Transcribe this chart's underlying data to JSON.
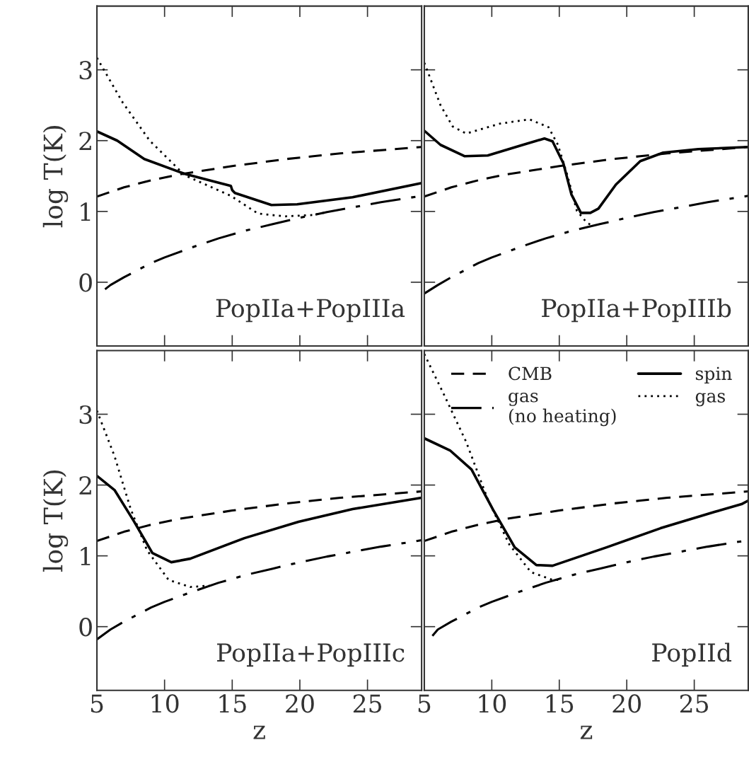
{
  "chart_data": [
    {
      "type": "line",
      "ylabel": "log T(K)",
      "xlim": [
        5,
        29
      ],
      "ylim": [
        -0.9,
        3.9
      ],
      "xticks": [
        5,
        10,
        15,
        20,
        25
      ],
      "yticks": [
        0,
        1,
        2,
        3
      ],
      "tick_labels": "y",
      "grid": false,
      "legend": false,
      "annotations": [
        "PopIIa+PopIIIa"
      ],
      "series": [
        {
          "color": "#000000",
          "line_style": "dashed",
          "x": [
            5,
            7,
            9,
            11,
            13,
            15,
            17,
            19,
            21,
            23,
            25,
            27,
            29
          ],
          "values": [
            1.21,
            1.34,
            1.44,
            1.52,
            1.58,
            1.64,
            1.69,
            1.74,
            1.78,
            1.82,
            1.85,
            1.88,
            1.91
          ]
        },
        {
          "color": "#000000",
          "line_style": "dashdot",
          "x": [
            5.6,
            6,
            7,
            8,
            9,
            10,
            12,
            14,
            16,
            18,
            20,
            22,
            24,
            26,
            28,
            29
          ],
          "values": [
            -0.1,
            -0.04,
            0.07,
            0.17,
            0.27,
            0.35,
            0.49,
            0.62,
            0.73,
            0.82,
            0.91,
            0.99,
            1.06,
            1.13,
            1.19,
            1.22
          ]
        },
        {
          "color": "#000000",
          "line_style": "solid",
          "x": [
            5,
            6.5,
            8.5,
            11.5,
            14.9,
            15,
            15.2,
            17.9,
            19.8,
            23.9,
            29
          ],
          "values": [
            2.13,
            2.0,
            1.74,
            1.53,
            1.36,
            1.3,
            1.26,
            1.09,
            1.1,
            1.2,
            1.4
          ]
        },
        {
          "color": "#000000",
          "line_style": "dotted",
          "x": [
            5,
            6.9,
            8.9,
            11.5,
            14.9,
            16.9,
            18.9,
            21,
            22
          ],
          "values": [
            3.17,
            2.54,
            2.0,
            1.51,
            1.22,
            0.97,
            0.93,
            0.95,
            0.99
          ]
        }
      ]
    },
    {
      "type": "line",
      "xlim": [
        5,
        29
      ],
      "ylim": [
        -0.9,
        3.9
      ],
      "xticks": [
        5,
        10,
        15,
        20,
        25
      ],
      "yticks": [
        0,
        1,
        2,
        3
      ],
      "tick_labels": false,
      "grid": false,
      "legend": false,
      "annotations": [
        "PopIIa+PopIIIb"
      ],
      "series": [
        {
          "color": "#000000",
          "line_style": "dashed",
          "x": [
            5,
            7,
            9,
            11,
            13,
            15,
            17,
            19,
            21,
            23,
            25,
            27,
            29
          ],
          "values": [
            1.21,
            1.34,
            1.44,
            1.52,
            1.58,
            1.64,
            1.69,
            1.74,
            1.78,
            1.82,
            1.85,
            1.88,
            1.91
          ]
        },
        {
          "color": "#000000",
          "line_style": "dashdot",
          "x": [
            5,
            6,
            7,
            8,
            9,
            10,
            12,
            14,
            16,
            18,
            20,
            22,
            24,
            26,
            28,
            29
          ],
          "values": [
            -0.16,
            -0.04,
            0.07,
            0.17,
            0.27,
            0.35,
            0.49,
            0.62,
            0.73,
            0.82,
            0.91,
            0.99,
            1.06,
            1.13,
            1.19,
            1.22
          ]
        },
        {
          "color": "#000000",
          "line_style": "solid",
          "x": [
            5,
            6.2,
            8.0,
            9.7,
            12.3,
            13.9,
            14.5,
            15.3,
            15.9,
            16.6,
            17.3,
            17.9,
            19.2,
            21.0,
            22.7,
            25.3,
            29
          ],
          "values": [
            2.14,
            1.94,
            1.78,
            1.79,
            1.94,
            2.03,
            1.99,
            1.68,
            1.24,
            0.98,
            0.98,
            1.04,
            1.38,
            1.71,
            1.83,
            1.88,
            1.91
          ]
        },
        {
          "color": "#000000",
          "line_style": "dotted",
          "x": [
            5,
            6.2,
            7.1,
            8.1,
            10.6,
            12.8,
            14.2,
            14.9,
            15.6,
            16.3,
            17.0,
            17.4
          ],
          "values": [
            3.1,
            2.5,
            2.2,
            2.1,
            2.24,
            2.3,
            2.19,
            1.94,
            1.51,
            1.01,
            0.85,
            0.8
          ]
        }
      ]
    },
    {
      "type": "line",
      "xlabel": "z",
      "ylabel": "log T(K)",
      "xlim": [
        5,
        29
      ],
      "ylim": [
        -0.9,
        3.9
      ],
      "xticks": [
        5,
        10,
        15,
        20,
        25
      ],
      "yticks": [
        0,
        1,
        2,
        3
      ],
      "grid": false,
      "legend": false,
      "annotations": [
        "PopIIa+PopIIIc"
      ],
      "series": [
        {
          "color": "#000000",
          "line_style": "dashed",
          "x": [
            5,
            7,
            9,
            11,
            13,
            15,
            17,
            19,
            21,
            23,
            25,
            27,
            29
          ],
          "values": [
            1.21,
            1.34,
            1.44,
            1.52,
            1.58,
            1.64,
            1.69,
            1.74,
            1.78,
            1.82,
            1.85,
            1.88,
            1.91
          ]
        },
        {
          "color": "#000000",
          "line_style": "dashdot",
          "x": [
            5,
            6,
            7,
            8,
            9,
            10,
            12,
            14,
            16,
            18,
            20,
            22,
            24,
            26,
            28,
            29
          ],
          "values": [
            -0.18,
            -0.04,
            0.07,
            0.17,
            0.27,
            0.35,
            0.49,
            0.62,
            0.73,
            0.82,
            0.91,
            0.99,
            1.06,
            1.13,
            1.19,
            1.22
          ]
        },
        {
          "color": "#000000",
          "line_style": "solid",
          "x": [
            5,
            6.3,
            7.7,
            9.1,
            10.5,
            11.9,
            15.9,
            19.9,
            23.9,
            29
          ],
          "values": [
            2.13,
            1.93,
            1.5,
            1.04,
            0.91,
            0.96,
            1.25,
            1.48,
            1.66,
            1.82
          ]
        },
        {
          "color": "#000000",
          "line_style": "dotted",
          "x": [
            5,
            6.3,
            7.5,
            8.7,
            10.3,
            11.9,
            13.3
          ],
          "values": [
            3.05,
            2.41,
            1.66,
            1.08,
            0.66,
            0.56,
            0.58
          ]
        }
      ]
    },
    {
      "type": "line",
      "xlabel": "z",
      "xlim": [
        5,
        29
      ],
      "ylim": [
        -0.9,
        3.9
      ],
      "xticks": [
        5,
        10,
        15,
        20,
        25
      ],
      "yticks": [
        0,
        1,
        2,
        3
      ],
      "tick_labels": "x",
      "grid": false,
      "legend": "top right",
      "annotations": [
        "PopIId"
      ],
      "series": [
        {
          "name": "CMB",
          "color": "#000000",
          "line_style": "dashed",
          "x": [
            5,
            7,
            9,
            11,
            13,
            15,
            17,
            19,
            21,
            23,
            25,
            27,
            29
          ],
          "values": [
            1.21,
            1.34,
            1.44,
            1.52,
            1.58,
            1.64,
            1.69,
            1.74,
            1.78,
            1.82,
            1.85,
            1.88,
            1.91
          ]
        },
        {
          "name": "gas\n(no heating)",
          "color": "#000000",
          "line_style": "dashdot",
          "x": [
            5.6,
            6,
            7,
            8,
            9,
            10,
            12,
            14,
            16,
            18,
            20,
            22,
            24,
            26,
            28,
            29
          ],
          "values": [
            -0.13,
            -0.04,
            0.07,
            0.17,
            0.27,
            0.35,
            0.49,
            0.62,
            0.73,
            0.82,
            0.91,
            0.99,
            1.06,
            1.13,
            1.19,
            1.22
          ]
        },
        {
          "name": "spin",
          "color": "#000000",
          "line_style": "solid",
          "x": [
            5,
            6.9,
            8.5,
            10.1,
            11.7,
            13.3,
            14.5,
            18.5,
            22.5,
            26.5,
            28.5,
            29
          ],
          "values": [
            2.66,
            2.49,
            2.22,
            1.65,
            1.12,
            0.87,
            0.86,
            1.12,
            1.39,
            1.62,
            1.73,
            1.78
          ]
        },
        {
          "name": "gas",
          "color": "#000000",
          "line_style": "dotted",
          "x": [
            5,
            6.5,
            8.1,
            9.7,
            11.3,
            12.9,
            14.5,
            15.2
          ],
          "values": [
            3.85,
            3.26,
            2.61,
            1.8,
            1.16,
            0.77,
            0.66,
            0.66
          ]
        }
      ]
    }
  ]
}
